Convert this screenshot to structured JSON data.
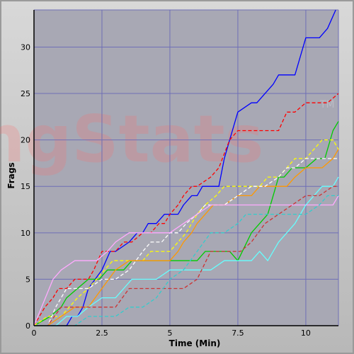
{
  "chart_data": {
    "type": "line",
    "xlabel": "Time (Min)",
    "ylabel": "Frags",
    "xlim": [
      0,
      11.2
    ],
    "ylim": [
      0,
      34
    ],
    "xticks": [
      0,
      2.5,
      5,
      7.5,
      10
    ],
    "yticks": [
      0,
      5,
      10,
      15,
      20,
      25,
      30
    ],
    "xtick_labels": [
      "0",
      "2.5",
      "5",
      "7.5",
      "10"
    ],
    "ytick_labels": [
      "0",
      "5",
      "10",
      "15",
      "20",
      "25",
      "30"
    ],
    "watermark": {
      "main": "ngStats",
      "tm": "TM"
    },
    "grid": true,
    "colors": {
      "plot_bg": "#a8a8b4",
      "grid": "#6f6fb6",
      "frame_top": "#d8d8d8",
      "frame_bottom": "#b8b8b8"
    },
    "series": [
      {
        "color": "#0000ff",
        "dash": "solid",
        "x": [
          0,
          1.2,
          1.4,
          1.6,
          1.8,
          2.0,
          2.5,
          2.8,
          3.0,
          3.5,
          3.8,
          4.0,
          4.2,
          4.5,
          4.8,
          5.0,
          5.3,
          5.5,
          5.8,
          6.0,
          6.2,
          6.5,
          6.8,
          7.0,
          7.2,
          7.5,
          8.0,
          8.2,
          8.5,
          8.8,
          9.0,
          9.3,
          9.6,
          10.0,
          10.5,
          10.8,
          11.1
        ],
        "y": [
          0,
          0,
          1,
          1,
          2,
          4,
          6,
          8,
          8,
          9,
          10,
          10,
          11,
          11,
          12,
          12,
          12,
          13,
          14,
          14,
          15,
          15,
          15,
          18,
          20,
          23,
          24,
          24,
          25,
          26,
          27,
          27,
          27,
          31,
          31,
          32,
          34
        ]
      },
      {
        "color": "#ff0000",
        "dash": "dashed",
        "x": [
          0,
          0.4,
          0.7,
          0.9,
          1.2,
          1.5,
          1.8,
          2.0,
          2.2,
          2.5,
          3.0,
          3.3,
          3.6,
          4.0,
          4.3,
          4.6,
          4.8,
          5.0,
          5.3,
          5.5,
          5.8,
          6.0,
          6.5,
          6.8,
          7.2,
          7.5,
          7.8,
          8.0,
          8.5,
          9.0,
          9.3,
          9.6,
          10.0,
          10.5,
          10.8,
          11.2
        ],
        "y": [
          0,
          2,
          3,
          4,
          4,
          5,
          5,
          5,
          6,
          8,
          8,
          9,
          9,
          10,
          10,
          11,
          11,
          12,
          13,
          14,
          15,
          15,
          16,
          17,
          20,
          21,
          21,
          21,
          21,
          21,
          23,
          23,
          24,
          24,
          24,
          25
        ]
      },
      {
        "color": "#00cc00",
        "dash": "solid",
        "x": [
          0,
          0.6,
          1.0,
          1.2,
          1.6,
          2.0,
          2.4,
          2.7,
          3.0,
          3.3,
          3.6,
          4.0,
          4.5,
          5.0,
          5.5,
          6.0,
          6.3,
          6.8,
          7.0,
          7.2,
          7.5,
          8.0,
          8.3,
          8.6,
          9.0,
          9.2,
          9.5,
          10.0,
          10.4,
          10.7,
          11.0,
          11.2
        ],
        "y": [
          0,
          1,
          2,
          3,
          4,
          5,
          5,
          6,
          6,
          6,
          7,
          7,
          7,
          7,
          7,
          7,
          8,
          8,
          8,
          8,
          7,
          10,
          11,
          12,
          16,
          16,
          17,
          17,
          18,
          18,
          21,
          22
        ]
      },
      {
        "color": "#ffff00",
        "dash": "dashed",
        "x": [
          0,
          0.5,
          1.0,
          1.3,
          1.6,
          2.0,
          2.3,
          2.6,
          2.9,
          3.2,
          3.6,
          4.0,
          4.3,
          4.6,
          5.0,
          5.3,
          5.6,
          5.8,
          6.0,
          6.3,
          6.7,
          7.0,
          7.5,
          8.0,
          8.3,
          8.6,
          9.0,
          9.3,
          9.6,
          10.0,
          10.3,
          10.6,
          11.0,
          11.2
        ],
        "y": [
          0,
          1,
          1,
          2,
          3,
          4,
          5,
          6,
          7,
          7,
          7,
          7,
          8,
          8,
          8,
          9,
          10,
          11,
          12,
          13,
          14,
          15,
          15,
          15,
          15,
          16,
          16,
          17,
          18,
          18,
          19,
          20,
          20,
          19
        ]
      },
      {
        "color": "#ff9900",
        "dash": "solid",
        "x": [
          0,
          0.5,
          1.0,
          1.5,
          2.0,
          2.5,
          3.0,
          3.5,
          4.0,
          4.5,
          5.0,
          5.3,
          5.5,
          5.8,
          6.0,
          6.3,
          6.6,
          7.0,
          7.5,
          8.0,
          8.3,
          8.6,
          9.0,
          9.3,
          9.6,
          10.0,
          10.3,
          10.6,
          11.0,
          11.2
        ],
        "y": [
          0,
          0,
          1,
          2,
          2,
          4,
          6,
          7,
          7,
          7,
          7,
          8,
          9,
          10,
          11,
          12,
          13,
          13,
          14,
          14,
          15,
          15,
          15,
          15,
          16,
          17,
          17,
          17,
          18,
          19
        ]
      },
      {
        "color": "#ffffff",
        "dash": "dashed",
        "x": [
          0,
          0.5,
          0.8,
          1.0,
          1.2,
          1.5,
          2.0,
          2.5,
          3.0,
          3.5,
          4.0,
          4.3,
          4.7,
          5.0,
          5.3,
          5.6,
          6.0,
          6.3,
          6.5,
          7.0,
          7.5,
          8.0,
          8.5,
          9.0,
          9.3,
          9.6,
          10.0,
          10.5,
          10.8,
          11.2
        ],
        "y": [
          0,
          0,
          2,
          3,
          4,
          4,
          4,
          5,
          5,
          6,
          8,
          9,
          9,
          10,
          10,
          11,
          12,
          13,
          13,
          13,
          14,
          15,
          15,
          16,
          17,
          17,
          18,
          18,
          18,
          18
        ]
      },
      {
        "color": "#ffaaff",
        "dash": "solid",
        "x": [
          0,
          0.7,
          1.0,
          1.5,
          2.0,
          2.3,
          2.7,
          3.0,
          3.5,
          4.0,
          4.5,
          5.0,
          5.5,
          6.0,
          6.5,
          7.0,
          7.5,
          8.0,
          8.5,
          9.0,
          9.5,
          10.0,
          10.5,
          10.8,
          11.0,
          11.2
        ],
        "y": [
          0,
          5,
          6,
          7,
          7,
          7,
          8,
          9,
          10,
          10,
          10,
          10,
          11,
          12,
          13,
          13,
          13,
          13,
          13,
          13,
          13,
          13,
          13,
          13,
          13,
          14
        ]
      },
      {
        "color": "#66ffff",
        "dash": "solid",
        "x": [
          0,
          0.8,
          1.2,
          1.6,
          2.0,
          2.5,
          3.0,
          3.3,
          3.6,
          4.0,
          4.5,
          5.0,
          5.5,
          6.0,
          6.5,
          7.0,
          7.3,
          7.6,
          7.8,
          8.0,
          8.3,
          8.6,
          9.0,
          9.3,
          9.6,
          10.0,
          10.3,
          10.6,
          11.0,
          11.2
        ],
        "y": [
          0,
          0,
          1,
          1,
          2,
          3,
          3,
          4,
          5,
          5,
          5,
          6,
          6,
          6,
          6,
          7,
          7,
          7,
          7,
          7,
          8,
          7,
          9,
          10,
          11,
          13,
          14,
          15,
          15,
          16
        ]
      },
      {
        "color": "#cc3333",
        "dash": "dashed",
        "x": [
          0,
          0.5,
          1.0,
          1.5,
          2.0,
          2.5,
          3.0,
          3.5,
          4.0,
          4.5,
          5.0,
          5.5,
          6.0,
          6.5,
          7.0,
          7.3,
          7.6,
          8.0,
          8.5,
          9.0,
          9.5,
          10.0,
          10.5,
          11.0,
          11.2
        ],
        "y": [
          0,
          0,
          2,
          2,
          2,
          2,
          2,
          4,
          4,
          4,
          4,
          4,
          5,
          8,
          8,
          8,
          8,
          9,
          11,
          12,
          13,
          14,
          14,
          15,
          15
        ]
      },
      {
        "color": "#33cccc",
        "dash": "dashed",
        "x": [
          0,
          0.5,
          1.0,
          1.5,
          2.0,
          2.5,
          3.0,
          3.5,
          4.0,
          4.5,
          5.0,
          5.5,
          6.0,
          6.5,
          7.0,
          7.5,
          7.8,
          8.0,
          8.5,
          9.0,
          9.5,
          10.0,
          10.5,
          10.8,
          11.2
        ],
        "y": [
          0,
          0,
          0,
          0,
          1,
          1,
          1,
          2,
          2,
          3,
          5,
          6,
          8,
          10,
          10,
          11,
          12,
          12,
          12,
          12,
          12,
          12,
          13,
          14,
          14
        ]
      }
    ]
  }
}
